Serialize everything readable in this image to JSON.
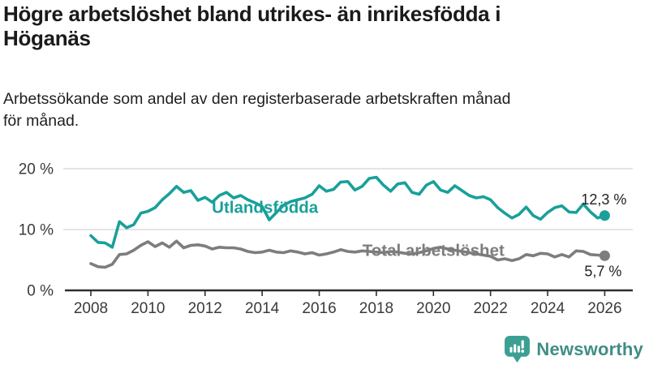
{
  "header": {
    "title": "Högre arbetslöshet bland utrikes- än inrikesfödda i Höganäs",
    "title_lines": [
      "Högre arbetslöshet bland utrikes- än inrikesfödda i",
      "Höganäs"
    ],
    "subtitle_lines": [
      "Arbetssökande som andel av den registerbaserade arbetskraften månad",
      "för månad."
    ]
  },
  "chart_data": {
    "type": "line",
    "title": "Högre arbetslöshet bland utrikes- än inrikesfödda i Höganäs",
    "subtitle": "Arbetssökande som andel av den registerbaserade arbetskraften månad för månad.",
    "xlabel": "",
    "ylabel": "",
    "x_start": 2008,
    "x_step": 0.25,
    "x_end": 2026,
    "xlim": [
      2007.1,
      2027
    ],
    "ylim": [
      0,
      21
    ],
    "grid": "horizontal",
    "legend_position": "inline-labels",
    "yticks": [
      {
        "v": 0,
        "label": "0 %"
      },
      {
        "v": 10,
        "label": "10 %"
      },
      {
        "v": 20,
        "label": "20 %"
      }
    ],
    "xticks": [
      {
        "x": 2008,
        "label": "2008"
      },
      {
        "x": 2010,
        "label": "2010"
      },
      {
        "x": 2012,
        "label": "2012"
      },
      {
        "x": 2014,
        "label": "2014"
      },
      {
        "x": 2016,
        "label": "2016"
      },
      {
        "x": 2018,
        "label": "2018"
      },
      {
        "x": 2020,
        "label": "2020"
      },
      {
        "x": 2022,
        "label": "2022"
      },
      {
        "x": 2024,
        "label": "2024"
      },
      {
        "x": 2026,
        "label": "2026"
      }
    ],
    "series": [
      {
        "name": "Utlandsfödda",
        "color": "#19a09a",
        "end_value": 12.3,
        "end_label": "12,3 %",
        "end_label_side": "above",
        "label_pos": {
          "x": 2014.1,
          "v": 13.7
        },
        "values": [
          9.0,
          7.9,
          7.8,
          7.1,
          11.3,
          10.3,
          10.8,
          12.7,
          13.0,
          13.6,
          14.9,
          15.9,
          17.1,
          16.1,
          16.4,
          14.8,
          15.3,
          14.5,
          15.6,
          16.1,
          15.2,
          15.6,
          14.9,
          14.4,
          13.8,
          11.6,
          12.8,
          14.0,
          14.6,
          14.9,
          15.2,
          15.8,
          17.2,
          16.3,
          16.6,
          17.8,
          17.9,
          16.5,
          17.1,
          18.4,
          18.6,
          17.3,
          16.3,
          17.5,
          17.7,
          16.1,
          15.8,
          17.3,
          17.9,
          16.5,
          16.1,
          17.2,
          16.4,
          15.6,
          15.2,
          15.4,
          14.9,
          13.6,
          12.7,
          11.9,
          12.5,
          13.7,
          12.3,
          11.7,
          12.8,
          13.6,
          13.9,
          12.9,
          12.8,
          14.2,
          12.9,
          11.9,
          12.3
        ]
      },
      {
        "name": "Total arbetslöshet",
        "color": "#7d7d7d",
        "end_value": 5.7,
        "end_label": "5,7 %",
        "end_label_side": "below",
        "label_pos": {
          "x": 2020.0,
          "v": 6.6
        },
        "values": [
          4.4,
          3.9,
          3.8,
          4.3,
          5.9,
          6.0,
          6.6,
          7.4,
          8.0,
          7.2,
          7.8,
          7.1,
          8.1,
          7.0,
          7.4,
          7.5,
          7.3,
          6.8,
          7.1,
          7.0,
          7.0,
          6.8,
          6.4,
          6.2,
          6.3,
          6.6,
          6.3,
          6.2,
          6.5,
          6.3,
          6.0,
          6.2,
          5.8,
          6.0,
          6.3,
          6.7,
          6.4,
          6.3,
          6.5,
          6.4,
          6.3,
          6.2,
          6.4,
          6.3,
          6.1,
          6.0,
          6.2,
          6.5,
          6.9,
          7.1,
          6.8,
          6.6,
          6.4,
          6.2,
          6.0,
          5.8,
          5.6,
          5.0,
          5.2,
          4.9,
          5.2,
          5.9,
          5.7,
          6.1,
          6.0,
          5.5,
          5.9,
          5.5,
          6.5,
          6.4,
          5.9,
          5.8,
          5.7
        ]
      }
    ]
  },
  "style": {
    "accent_teal": "#19a09a",
    "line_gray": "#7d7d7d",
    "grid_color": "#dcdcdc",
    "axis_color": "#2f2f2f",
    "tick_label_color": "#3a3a3a",
    "end_label_color": "#222222",
    "text_color": "#1a1a1a"
  },
  "footer": {
    "brand": "Newsworthy",
    "brand_color": "#3f8e85",
    "icon_color": "#3ba093"
  }
}
